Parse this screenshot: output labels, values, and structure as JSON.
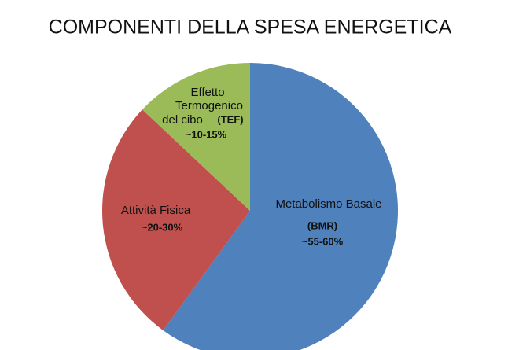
{
  "chart_data": {
    "type": "pie",
    "title": "COMPONENTI DELLA SPESA ENERGETICA",
    "categories": [
      [
        "Metabolismo Basale"
      ],
      [
        "Attività Fisica"
      ],
      [
        "Effetto",
        "Termogenico",
        "del cibo"
      ]
    ],
    "abbreviations": [
      "(BMR)",
      null,
      "(TEF)"
    ],
    "range_labels": [
      "~55-60%",
      "~20-30%",
      "~10-15%"
    ],
    "values": [
      60,
      27,
      13
    ],
    "colors": [
      "#4f81bd",
      "#c0504d",
      "#9bbb59"
    ]
  }
}
